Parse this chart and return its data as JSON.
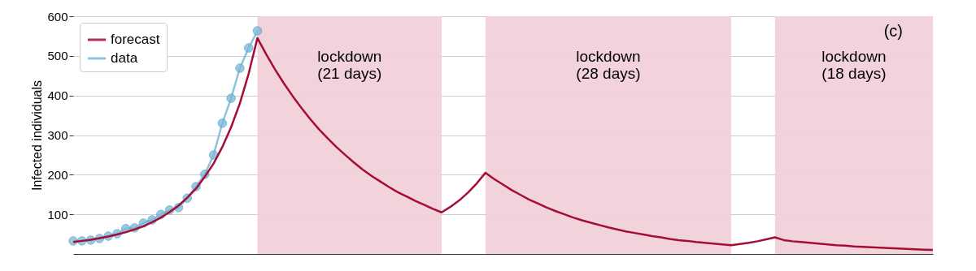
{
  "chart_data": {
    "type": "line",
    "ylabel": "Infected individuals",
    "annotations": [
      "lockdown\n(21 days)",
      "lockdown\n(28 days)",
      "lockdown\n(18 days)",
      "(c)"
    ],
    "categories": [
      null,
      null,
      null,
      null,
      null,
      null,
      null,
      null,
      null,
      null,
      null,
      null,
      null,
      null,
      null,
      null,
      null,
      null,
      null,
      null,
      null,
      null,
      null,
      null,
      null,
      null,
      null,
      null,
      null,
      null,
      null,
      null,
      null,
      null,
      null,
      null,
      null,
      null,
      null,
      null,
      null,
      null,
      null,
      null,
      null,
      null,
      null,
      null,
      null,
      null,
      null,
      null,
      null,
      null,
      null,
      null,
      null,
      null,
      null,
      null,
      null,
      null,
      null,
      null,
      null,
      null,
      null,
      null,
      null,
      null,
      null,
      null,
      null,
      null,
      null,
      null,
      null,
      null,
      null,
      null,
      null,
      null,
      null,
      null,
      null,
      null,
      null,
      null,
      null,
      null,
      null,
      null,
      null,
      null,
      null,
      null,
      null,
      null,
      null
    ],
    "ylim": [
      0,
      600
    ],
    "yticks": [
      100,
      200,
      300,
      400,
      500,
      600
    ],
    "tick_labels": "y",
    "grid": "y",
    "legend": "top left",
    "series": [
      {
        "name": "forecast",
        "color": "#a50d34",
        "marker": "none",
        "values": [
          30,
          33,
          36,
          40,
          44,
          49,
          55,
          62,
          70,
          80,
          92,
          106,
          122,
          142,
          165,
          195,
          228,
          270,
          320,
          380,
          455,
          545,
          504,
          466,
          431,
          399,
          369,
          341,
          315,
          292,
          270,
          250,
          231,
          213,
          197,
          183,
          169,
          156,
          145,
          134,
          124,
          114,
          105,
          119,
          135,
          155,
          178,
          205,
          189,
          175,
          161,
          149,
          137,
          127,
          117,
          108,
          100,
          92,
          85,
          79,
          73,
          67,
          62,
          57,
          53,
          49,
          45,
          42,
          38,
          35,
          33,
          30,
          28,
          26,
          24,
          22,
          25,
          28,
          32,
          37,
          42,
          35,
          32,
          30,
          28,
          26,
          24,
          22,
          21,
          19,
          18,
          17,
          16,
          15,
          14,
          13,
          12,
          11,
          10
        ]
      },
      {
        "name": "data",
        "color": "#7ab8d6",
        "marker": "circle",
        "values": [
          33,
          33,
          35,
          39,
          45,
          51,
          64,
          66,
          78,
          86,
          100,
          111,
          117,
          141,
          170,
          201,
          250,
          330,
          393,
          469,
          520,
          563,
          null,
          null,
          null,
          null,
          null,
          null,
          null,
          null,
          null,
          null,
          null,
          null,
          null,
          null,
          null,
          null,
          null,
          null,
          null,
          null,
          null,
          null,
          null,
          null,
          null,
          null,
          null,
          null,
          null,
          null,
          null,
          null,
          null,
          null,
          null,
          null,
          null,
          null,
          null,
          null,
          null,
          null,
          null,
          null,
          null,
          null,
          null,
          null,
          null,
          null,
          null,
          null,
          null,
          null,
          null,
          null,
          null,
          null,
          null,
          null,
          null,
          null,
          null,
          null,
          null,
          null,
          null,
          null,
          null,
          null,
          null,
          null,
          null,
          null,
          null,
          null,
          null
        ]
      }
    ]
  }
}
